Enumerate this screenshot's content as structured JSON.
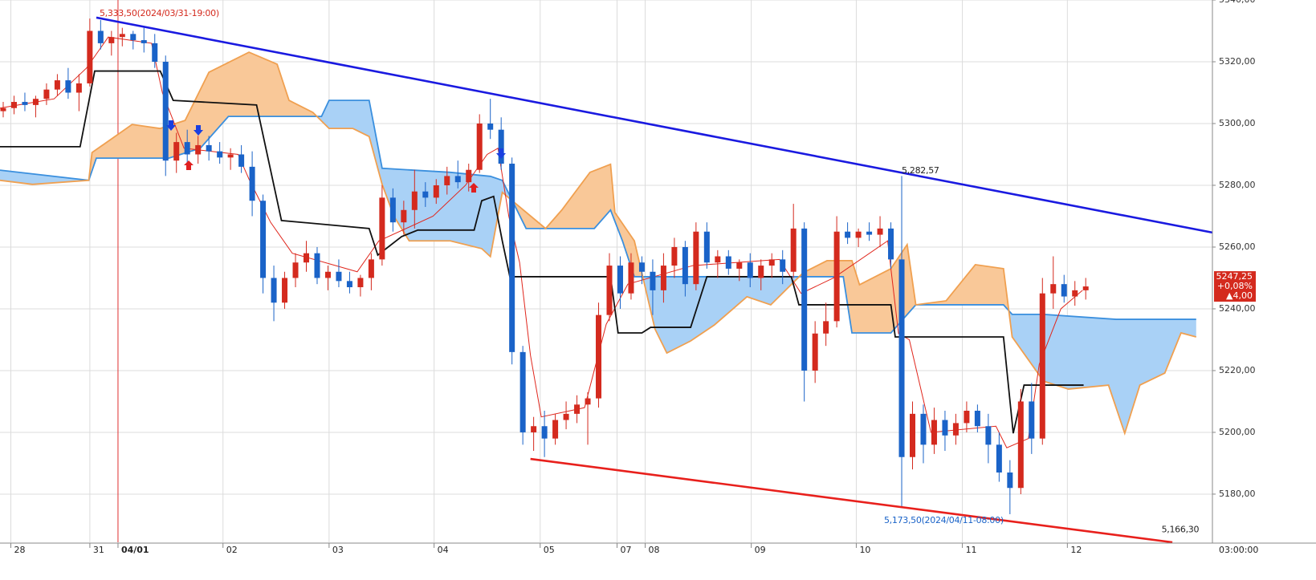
{
  "chart_data": {
    "type": "candlestick",
    "xlim": [
      0,
      112
    ],
    "ylim": [
      5164.4,
      5340
    ],
    "yticks": [
      {
        "value": 5180,
        "label": "5180,00"
      },
      {
        "value": 5200,
        "label": "5200,00"
      },
      {
        "value": 5220,
        "label": "5220,00"
      },
      {
        "value": 5240,
        "label": "5240,00"
      },
      {
        "value": 5260,
        "label": "5260,00"
      },
      {
        "value": 5280,
        "label": "5280,00"
      },
      {
        "value": 5300,
        "label": "5300,00"
      },
      {
        "value": 5320,
        "label": "5320,00"
      },
      {
        "value": 5340,
        "label": "5340,00"
      }
    ],
    "xticks": [
      {
        "value": 1,
        "label": "28"
      },
      {
        "value": 8.3,
        "label": "31"
      },
      {
        "value": 10.9,
        "label": "04/01"
      },
      {
        "value": 20.6,
        "label": "02"
      },
      {
        "value": 30.4,
        "label": "03"
      },
      {
        "value": 40.1,
        "label": "04"
      },
      {
        "value": 49.9,
        "label": "05"
      },
      {
        "value": 57,
        "label": "07"
      },
      {
        "value": 59.6,
        "label": "08"
      },
      {
        "value": 69.4,
        "label": "09"
      },
      {
        "value": 79.1,
        "label": "10"
      },
      {
        "value": 88.9,
        "label": "11"
      },
      {
        "value": 98.6,
        "label": "12"
      }
    ],
    "x_axis_end_label": "03:00:00",
    "highlight_xtick": 2,
    "grid": true,
    "up_color": "#d42a1e",
    "down_color": "#1a63c8",
    "candles": [
      [
        5304,
        5307,
        5302,
        5305
      ],
      [
        5305,
        5309,
        5303,
        5307
      ],
      [
        5307,
        5310,
        5304,
        5306
      ],
      [
        5306,
        5309,
        5302,
        5308
      ],
      [
        5308,
        5313,
        5306,
        5311
      ],
      [
        5311,
        5316,
        5309,
        5314
      ],
      [
        5314,
        5318,
        5308,
        5310
      ],
      [
        5310,
        5316,
        5304,
        5313
      ],
      [
        5313,
        5334,
        5312,
        5330
      ],
      [
        5330,
        5333.5,
        5324,
        5326
      ],
      [
        5326,
        5330,
        5322,
        5328
      ],
      [
        5328,
        5331,
        5325,
        5329
      ],
      [
        5329,
        5330,
        5324,
        5327
      ],
      [
        5327,
        5331,
        5323,
        5326
      ],
      [
        5326,
        5329,
        5318,
        5320
      ],
      [
        5320,
        5322,
        5283,
        5288
      ],
      [
        5288,
        5297,
        5284,
        5294
      ],
      [
        5294,
        5298,
        5286,
        5290
      ],
      [
        5290,
        5296,
        5287,
        5293
      ],
      [
        5293,
        5296,
        5288,
        5291
      ],
      [
        5291,
        5294,
        5287,
        5289
      ],
      [
        5289,
        5292,
        5285,
        5290
      ],
      [
        5290,
        5293,
        5284,
        5286
      ],
      [
        5286,
        5291,
        5270,
        5275
      ],
      [
        5275,
        5277,
        5245,
        5250
      ],
      [
        5250,
        5254,
        5236,
        5242
      ],
      [
        5242,
        5252,
        5240,
        5250
      ],
      [
        5250,
        5258,
        5247,
        5255
      ],
      [
        5255,
        5262,
        5252,
        5258
      ],
      [
        5258,
        5260,
        5248,
        5250
      ],
      [
        5250,
        5254,
        5246,
        5252
      ],
      [
        5252,
        5256,
        5247,
        5249
      ],
      [
        5249,
        5252,
        5245,
        5247
      ],
      [
        5247,
        5251,
        5244,
        5250
      ],
      [
        5250,
        5258,
        5246,
        5256
      ],
      [
        5256,
        5280,
        5254,
        5276
      ],
      [
        5276,
        5279,
        5265,
        5268
      ],
      [
        5268,
        5275,
        5264,
        5272
      ],
      [
        5272,
        5285,
        5266,
        5278
      ],
      [
        5278,
        5281,
        5273,
        5276
      ],
      [
        5276,
        5282,
        5274,
        5280
      ],
      [
        5280,
        5286,
        5277,
        5283
      ],
      [
        5283,
        5288,
        5279,
        5281
      ],
      [
        5281,
        5287,
        5278,
        5285
      ],
      [
        5285,
        5303,
        5284,
        5300
      ],
      [
        5300,
        5308,
        5295,
        5298
      ],
      [
        5298,
        5302,
        5285,
        5287
      ],
      [
        5287,
        5289,
        5222,
        5226
      ],
      [
        5226,
        5228,
        5196,
        5200
      ],
      [
        5200,
        5205,
        5194,
        5202
      ],
      [
        5202,
        5207,
        5192,
        5198
      ],
      [
        5198,
        5206,
        5196,
        5204
      ],
      [
        5204,
        5210,
        5201,
        5206
      ],
      [
        5206,
        5212,
        5203,
        5209
      ],
      [
        5209,
        5213,
        5196,
        5211
      ],
      [
        5211,
        5242,
        5208,
        5238
      ],
      [
        5238,
        5258,
        5236,
        5254
      ],
      [
        5254,
        5257,
        5240,
        5245
      ],
      [
        5245,
        5258,
        5243,
        5255
      ],
      [
        5255,
        5257,
        5248,
        5252
      ],
      [
        5252,
        5256,
        5238,
        5246
      ],
      [
        5246,
        5258,
        5242,
        5254
      ],
      [
        5254,
        5263,
        5250,
        5260
      ],
      [
        5260,
        5262,
        5244,
        5248
      ],
      [
        5248,
        5268,
        5246,
        5265
      ],
      [
        5265,
        5268,
        5253,
        5255
      ],
      [
        5255,
        5259,
        5250,
        5257
      ],
      [
        5257,
        5259,
        5251,
        5253
      ],
      [
        5253,
        5256,
        5249,
        5255
      ],
      [
        5255,
        5258,
        5247,
        5250
      ],
      [
        5250,
        5256,
        5246,
        5254
      ],
      [
        5254,
        5258,
        5250,
        5256
      ],
      [
        5256,
        5259,
        5248,
        5252
      ],
      [
        5252,
        5274,
        5250,
        5266
      ],
      [
        5266,
        5268,
        5210,
        5220
      ],
      [
        5220,
        5236,
        5216,
        5232
      ],
      [
        5232,
        5242,
        5228,
        5236
      ],
      [
        5236,
        5270,
        5234,
        5265
      ],
      [
        5265,
        5268,
        5261,
        5263
      ],
      [
        5263,
        5266,
        5260,
        5265
      ],
      [
        5265,
        5268,
        5262,
        5264
      ],
      [
        5264,
        5270,
        5260,
        5266
      ],
      [
        5266,
        5268,
        5253,
        5256
      ],
      [
        5256,
        5283,
        5176,
        5192
      ],
      [
        5192,
        5210,
        5188,
        5206
      ],
      [
        5206,
        5209,
        5190,
        5196
      ],
      [
        5196,
        5208,
        5193,
        5204
      ],
      [
        5204,
        5207,
        5194,
        5199
      ],
      [
        5199,
        5206,
        5196,
        5203
      ],
      [
        5203,
        5210,
        5200,
        5207
      ],
      [
        5207,
        5209,
        5200,
        5202
      ],
      [
        5202,
        5206,
        5190,
        5196
      ],
      [
        5196,
        5200,
        5184,
        5187
      ],
      [
        5187,
        5191,
        5173.5,
        5182
      ],
      [
        5182,
        5214,
        5180,
        5210
      ],
      [
        5210,
        5216,
        5193,
        5198
      ],
      [
        5198,
        5250,
        5196,
        5245
      ],
      [
        5245,
        5257,
        5240,
        5248
      ],
      [
        5248,
        5251,
        5242,
        5244
      ],
      [
        5244,
        5249,
        5241,
        5246
      ],
      [
        5246,
        5250,
        5243,
        5247.25
      ]
    ],
    "lines": [
      {
        "color": "#e0261c",
        "width": 1,
        "x": [
          0,
          5,
          8,
          10,
          14,
          15,
          17,
          22,
          23,
          25,
          27,
          33,
          35,
          40,
          43,
          45,
          46,
          47,
          48,
          49,
          50,
          54,
          56,
          58,
          64,
          72,
          74,
          77,
          82,
          83,
          84,
          86,
          92,
          93,
          95,
          96,
          98,
          100
        ],
        "values": [
          5305,
          5308,
          5318,
          5328,
          5326,
          5310,
          5292,
          5290,
          5282,
          5268,
          5258,
          5252,
          5262,
          5270,
          5280,
          5290,
          5292,
          5270,
          5255,
          5225,
          5205,
          5208,
          5235,
          5248,
          5254,
          5256,
          5245,
          5250,
          5262,
          5232,
          5230,
          5200,
          5202,
          5195,
          5198,
          5222,
          5240,
          5246
        ]
      },
      {
        "color": "#111111",
        "width": 1.8,
        "x": [
          0,
          7.4,
          8.75,
          14.8,
          16,
          23.7,
          26,
          34.1,
          34.9,
          37.1,
          38.6,
          43.8,
          44.5,
          45.6,
          46.4,
          47.1,
          56.4,
          57.1,
          59.3,
          60.1,
          63.8,
          65.3,
          73.1,
          73.8,
          82.3,
          82.7,
          92.7,
          93.6,
          94.6,
          100.1
        ],
        "values": [
          5292.5,
          5292.5,
          5317,
          5317,
          5307.5,
          5306,
          5268.6,
          5266,
          5257.4,
          5263.4,
          5265.5,
          5265.5,
          5275,
          5276.4,
          5262,
          5250.4,
          5250.4,
          5232.2,
          5232.2,
          5234,
          5234,
          5250.4,
          5250.4,
          5241.3,
          5241.3,
          5230.9,
          5230.9,
          5199.7,
          5215.3,
          5215.3
        ]
      }
    ],
    "cloud": [
      {
        "color": "#3a8fde",
        "fill": "#a9d1f6",
        "x": [
          0,
          8.2,
          8.9,
          15.6,
          18.5,
          21.1,
          29.7,
          30.4,
          34.1,
          35.3,
          41.6,
          45.3,
          46.4,
          48.6,
          54.9,
          56.4,
          57.5,
          58.6,
          74.2,
          77.9,
          78.7,
          82.3,
          84.6,
          92.7,
          93.5,
          96.4,
          103.1,
          110.5
        ],
        "values": [
          5284.9,
          5281.6,
          5288.8,
          5288.8,
          5292,
          5302.3,
          5302.3,
          5307.5,
          5307.5,
          5285.5,
          5284.2,
          5282.9,
          5281.6,
          5266,
          5266,
          5272,
          5262,
          5250.4,
          5250.4,
          5250.4,
          5232.2,
          5232.2,
          5241.3,
          5241.3,
          5238.2,
          5238.2,
          5236.6,
          5236.6
        ]
      },
      {
        "color": "#f0a050",
        "fill": "#f9c898",
        "x": [
          0,
          3,
          8.2,
          8.5,
          12.2,
          14.8,
          17.1,
          19.3,
          23,
          25.6,
          26.7,
          28.9,
          30.4,
          32.6,
          34.1,
          35.3,
          36.4,
          37.8,
          41.6,
          44.5,
          45.3,
          46.4,
          50.4,
          51.9,
          54.5,
          56.4,
          56.8,
          58.6,
          60.5,
          61.6,
          63.8,
          66,
          69,
          71.2,
          74.2,
          76.4,
          78.7,
          79.4,
          82.3,
          83.8,
          84.6,
          87.4,
          90.1,
          92.7,
          93.5,
          96.4,
          98.7,
          102.4,
          103.9,
          105.3,
          107.6,
          109.1,
          110.5
        ],
        "values": [
          5281.6,
          5280.3,
          5281.6,
          5290.6,
          5299.7,
          5298.4,
          5301,
          5316.6,
          5323.1,
          5319.2,
          5307.5,
          5303.6,
          5298.4,
          5298.4,
          5295.8,
          5280.3,
          5269.9,
          5262,
          5262,
          5259.5,
          5256.9,
          5277.7,
          5266,
          5272,
          5284.2,
          5286.8,
          5271.2,
          5262,
          5233.5,
          5225.7,
          5229.6,
          5234.8,
          5243.9,
          5241.3,
          5251.7,
          5255.6,
          5255.6,
          5247.8,
          5253,
          5260.8,
          5241.3,
          5242.6,
          5254.3,
          5253,
          5230.9,
          5216.6,
          5214,
          5215.3,
          5199.7,
          5215.3,
          5219.2,
          5232.2,
          5230.9
        ]
      }
    ],
    "trendlines": [
      {
        "color": "#1a1ae0",
        "x": [
          8.9,
          112
        ],
        "values": [
          5334.3,
          5264.7
        ]
      },
      {
        "color": "#e8201c",
        "x": [
          49,
          108.3
        ],
        "values": [
          5191.4,
          5164.4
        ]
      }
    ],
    "annotations": [
      {
        "text": "5,333,50(2024/03/31-19:00)",
        "x": 8.9,
        "y": 5333.5,
        "color": "#d42a1e"
      },
      {
        "text": "5,282,57",
        "x": 83,
        "y": 5282.57,
        "color": "#222222"
      },
      {
        "text": "5,173,50(2024/04/11-08:00)",
        "x": 93,
        "y": 5173.5,
        "color": "#1a63c8"
      },
      {
        "text": "5,166,30",
        "x": 107,
        "y": 5166.3,
        "color": "#222222"
      }
    ],
    "last_price": {
      "value": 5247.25,
      "label": "5247,25",
      "change": "+0,08%",
      "delta": "▲4,00"
    }
  }
}
